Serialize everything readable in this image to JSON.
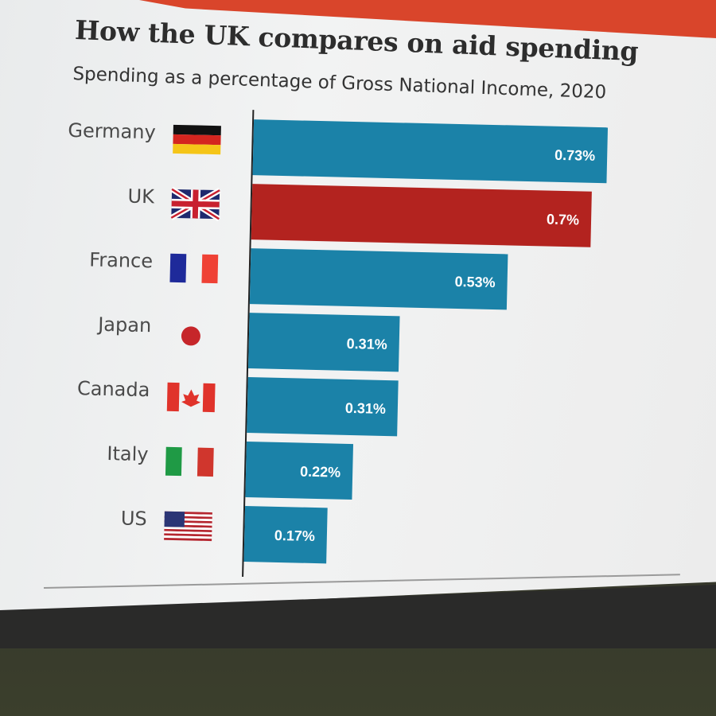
{
  "header": {
    "title": "How the UK compares on aid spending",
    "subtitle": "Spending as a percentage of Gross National Income, 2020"
  },
  "colors": {
    "bar_default": "#1b82a8",
    "bar_highlight": "#b3231f",
    "label_text": "#4a4a4a",
    "value_text": "#ffffff"
  },
  "chart_data": {
    "type": "bar",
    "orientation": "horizontal",
    "title": "How the UK compares on aid spending",
    "subtitle": "Spending as a percentage of Gross National Income, 2020",
    "xlabel": "",
    "ylabel": "",
    "categories": [
      "Germany",
      "UK",
      "France",
      "Japan",
      "Canada",
      "Italy",
      "US"
    ],
    "values": [
      0.73,
      0.7,
      0.53,
      0.31,
      0.31,
      0.22,
      0.17
    ],
    "value_labels": [
      "0.73%",
      "0.7%",
      "0.53%",
      "0.31%",
      "0.31%",
      "0.22%",
      "0.17%"
    ],
    "highlight": "UK",
    "flags": [
      "germany-flag-icon",
      "uk-flag-icon",
      "france-flag-icon",
      "japan-flag-icon",
      "canada-flag-icon",
      "italy-flag-icon",
      "us-flag-icon"
    ],
    "xlim": [
      0,
      0.73
    ],
    "grid": false,
    "legend": "none"
  }
}
